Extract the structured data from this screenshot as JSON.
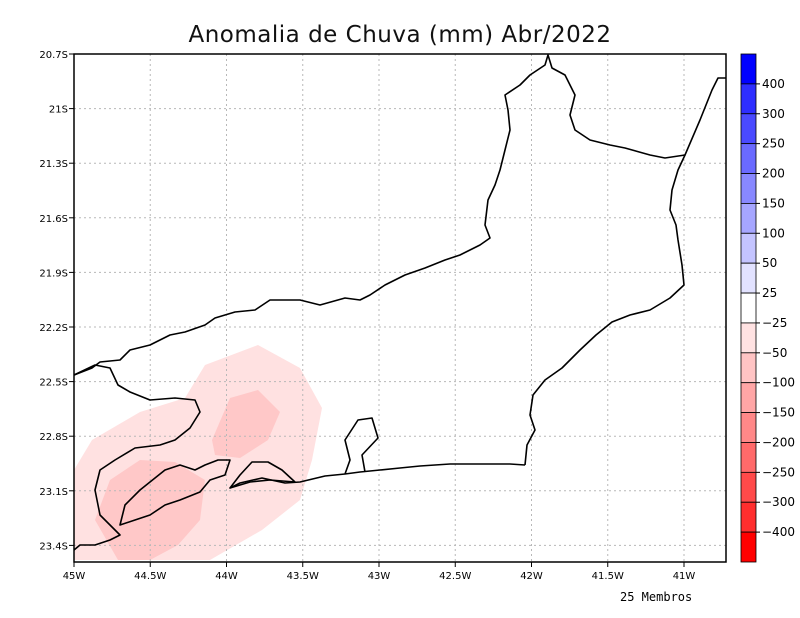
{
  "chart_data": {
    "type": "map-contour",
    "title": "Anomalia de Chuva (mm) Abr/2022",
    "footer_note": "25 Membros",
    "lon_range": [
      -45,
      -40.7
    ],
    "lat_range": [
      -23.5,
      -20.7
    ],
    "grid": true,
    "x_ticks": [
      {
        "value": -45,
        "label": "45W"
      },
      {
        "value": -44.5,
        "label": "44.5W"
      },
      {
        "value": -44,
        "label": "44W"
      },
      {
        "value": -43.5,
        "label": "43.5W"
      },
      {
        "value": -43,
        "label": "43W"
      },
      {
        "value": -42.5,
        "label": "42.5W"
      },
      {
        "value": -42,
        "label": "42W"
      },
      {
        "value": -41.5,
        "label": "41.5W"
      },
      {
        "value": -41,
        "label": "41W"
      }
    ],
    "y_ticks": [
      {
        "value": -20.7,
        "label": "20.7S"
      },
      {
        "value": -21,
        "label": "21S"
      },
      {
        "value": -21.3,
        "label": "21.3S"
      },
      {
        "value": -21.6,
        "label": "21.6S"
      },
      {
        "value": -21.9,
        "label": "21.9S"
      },
      {
        "value": -22.2,
        "label": "22.2S"
      },
      {
        "value": -22.5,
        "label": "22.5S"
      },
      {
        "value": -22.8,
        "label": "22.8S"
      },
      {
        "value": -23.1,
        "label": "23.1S"
      },
      {
        "value": -23.4,
        "label": "23.4S"
      }
    ],
    "colorbar": {
      "colors": [
        "#0000ff",
        "#2e2eff",
        "#4a4aff",
        "#6a6aff",
        "#8888ff",
        "#a6a6ff",
        "#c4c4ff",
        "#e2e2ff",
        "#ffffff",
        "#ffe2e2",
        "#ffc4c4",
        "#ffa6a6",
        "#ff8888",
        "#ff6a6a",
        "#ff4a4a",
        "#ff2e2e",
        "#ff0000"
      ],
      "labels": [
        "400",
        "300",
        "250",
        "200",
        "150",
        "100",
        "50",
        "25",
        "−25",
        "−50",
        "−100",
        "−150",
        "−200",
        "−250",
        "−300",
        "−400"
      ]
    },
    "anomaly_regions": [
      {
        "level": "-25 to -50",
        "color": "#ffe0e0"
      },
      {
        "level": "-50 to -100",
        "color": "#ffc4c4"
      },
      {
        "level": "-100 to -150",
        "color": "#ffb0b0"
      }
    ]
  }
}
